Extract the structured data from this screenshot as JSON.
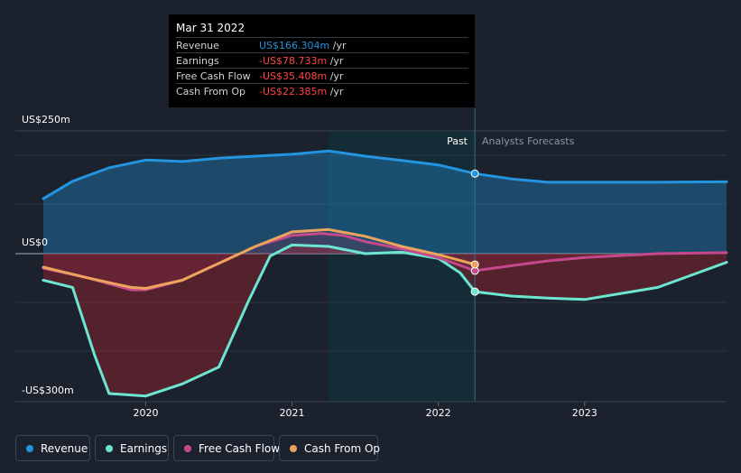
{
  "tooltip": {
    "date": "Mar 31 2022",
    "rows": [
      {
        "label": "Revenue",
        "value": "US$166.304m",
        "unit": " /yr",
        "color": "#2394df"
      },
      {
        "label": "Earnings",
        "value": "-US$78.733m",
        "unit": " /yr",
        "color": "#ff4545"
      },
      {
        "label": "Free Cash Flow",
        "value": "-US$35.408m",
        "unit": " /yr",
        "color": "#ff4545"
      },
      {
        "label": "Cash From Op",
        "value": "-US$22.385m",
        "unit": " /yr",
        "color": "#ff4545"
      }
    ]
  },
  "legend": [
    {
      "label": "Revenue",
      "color": "#2394df"
    },
    {
      "label": "Earnings",
      "color": "#6ce5d1"
    },
    {
      "label": "Free Cash Flow",
      "color": "#c4498c"
    },
    {
      "label": "Cash From Op",
      "color": "#eca45c"
    }
  ],
  "chart_data": {
    "type": "line",
    "ylabels": [
      "US$250m",
      "US$0",
      "-US$300m"
    ],
    "ylim": [
      -300,
      250
    ],
    "xlim": [
      2019.3,
      2023.97
    ],
    "xticks": [
      {
        "label": "2020",
        "x": 2020.0
      },
      {
        "label": "2021",
        "x": 2021.0
      },
      {
        "label": "2022",
        "x": 2022.0
      },
      {
        "label": "2023",
        "x": 2023.0
      }
    ],
    "past_label": "Past",
    "forecast_label": "Analysts Forecasts",
    "shaded_region": [
      2021.25,
      2022.25
    ],
    "current_x": 2022.25,
    "series": [
      {
        "name": "Revenue",
        "color": "#2394df",
        "fill": true,
        "points": [
          [
            2019.3,
            114
          ],
          [
            2019.5,
            150
          ],
          [
            2019.75,
            178
          ],
          [
            2020.0,
            194
          ],
          [
            2020.25,
            191
          ],
          [
            2020.5,
            198
          ],
          [
            2020.75,
            202
          ],
          [
            2021.0,
            206
          ],
          [
            2021.25,
            213
          ],
          [
            2021.5,
            202
          ],
          [
            2021.75,
            193
          ],
          [
            2022.0,
            184
          ],
          [
            2022.25,
            166
          ],
          [
            2022.5,
            155
          ],
          [
            2022.75,
            148
          ],
          [
            2023.0,
            148
          ],
          [
            2023.5,
            148
          ],
          [
            2023.97,
            149
          ]
        ]
      },
      {
        "name": "Earnings",
        "color": "#6ce5d1",
        "fill": true,
        "points": [
          [
            2019.3,
            -55
          ],
          [
            2019.5,
            -70
          ],
          [
            2019.65,
            -210
          ],
          [
            2019.75,
            -290
          ],
          [
            2020.0,
            -295
          ],
          [
            2020.25,
            -270
          ],
          [
            2020.5,
            -235
          ],
          [
            2020.7,
            -100
          ],
          [
            2020.85,
            -5
          ],
          [
            2021.0,
            18
          ],
          [
            2021.25,
            15
          ],
          [
            2021.5,
            0
          ],
          [
            2021.75,
            3
          ],
          [
            2022.0,
            -10
          ],
          [
            2022.15,
            -40
          ],
          [
            2022.25,
            -78.7
          ],
          [
            2022.5,
            -88
          ],
          [
            2022.75,
            -92
          ],
          [
            2023.0,
            -95
          ],
          [
            2023.5,
            -70
          ],
          [
            2023.97,
            -18
          ]
        ]
      },
      {
        "name": "Free Cash Flow",
        "color": "#c4498c",
        "fill": true,
        "points": [
          [
            2019.3,
            -30
          ],
          [
            2019.6,
            -50
          ],
          [
            2019.9,
            -75
          ],
          [
            2020.0,
            -75
          ],
          [
            2020.25,
            -55
          ],
          [
            2020.5,
            -20
          ],
          [
            2020.75,
            15
          ],
          [
            2021.0,
            38
          ],
          [
            2021.2,
            42
          ],
          [
            2021.35,
            38
          ],
          [
            2021.5,
            25
          ],
          [
            2021.75,
            10
          ],
          [
            2022.0,
            -8
          ],
          [
            2022.25,
            -35.4
          ],
          [
            2022.5,
            -25
          ],
          [
            2022.75,
            -15
          ],
          [
            2023.0,
            -8
          ],
          [
            2023.5,
            0
          ],
          [
            2023.97,
            2
          ]
        ]
      },
      {
        "name": "Cash From Op",
        "color": "#eca45c",
        "fill": false,
        "points": [
          [
            2019.3,
            -28
          ],
          [
            2019.6,
            -50
          ],
          [
            2019.9,
            -70
          ],
          [
            2020.0,
            -72
          ],
          [
            2020.25,
            -55
          ],
          [
            2020.5,
            -20
          ],
          [
            2020.75,
            15
          ],
          [
            2021.0,
            45
          ],
          [
            2021.25,
            50
          ],
          [
            2021.5,
            36
          ],
          [
            2021.75,
            15
          ],
          [
            2022.0,
            -2
          ],
          [
            2022.25,
            -22.4
          ]
        ]
      }
    ]
  }
}
